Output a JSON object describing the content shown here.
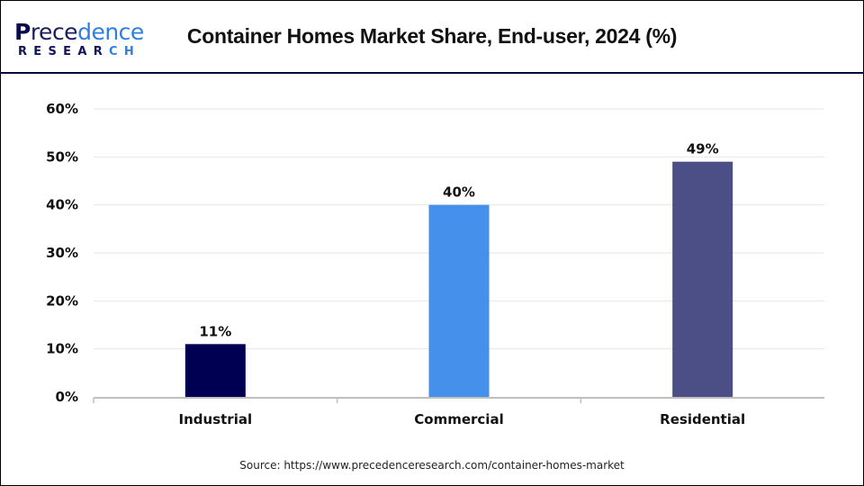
{
  "logo": {
    "brand_top_first": "P",
    "brand_top_rest_a": "rece",
    "brand_top_rest_b": "dence",
    "brand_bottom_a": "RESEAR",
    "brand_bottom_b": "CH"
  },
  "colors": {
    "divider": "#0a0a3a",
    "gridline": "#e6e6e6",
    "axis": "#bfbfbf"
  },
  "source_text": "Source: https://www.precedenceresearch.com/container-homes-market",
  "chart_data": {
    "type": "bar",
    "title": "Container Homes Market Share, End-user, 2024 (%)",
    "xlabel": "",
    "ylabel": "",
    "categories": [
      "Industrial",
      "Commercial",
      "Residential"
    ],
    "values": [
      11,
      40,
      49
    ],
    "value_labels": [
      "11%",
      "40%",
      "49%"
    ],
    "bar_colors": [
      "#000052",
      "#4590ea",
      "#4b4f86"
    ],
    "ylim": [
      0,
      60
    ],
    "yticks": [
      0,
      10,
      20,
      30,
      40,
      50,
      60
    ],
    "ytick_labels": [
      "0%",
      "10%",
      "20%",
      "30%",
      "40%",
      "50%",
      "60%"
    ],
    "grid": true,
    "legend": "none"
  }
}
